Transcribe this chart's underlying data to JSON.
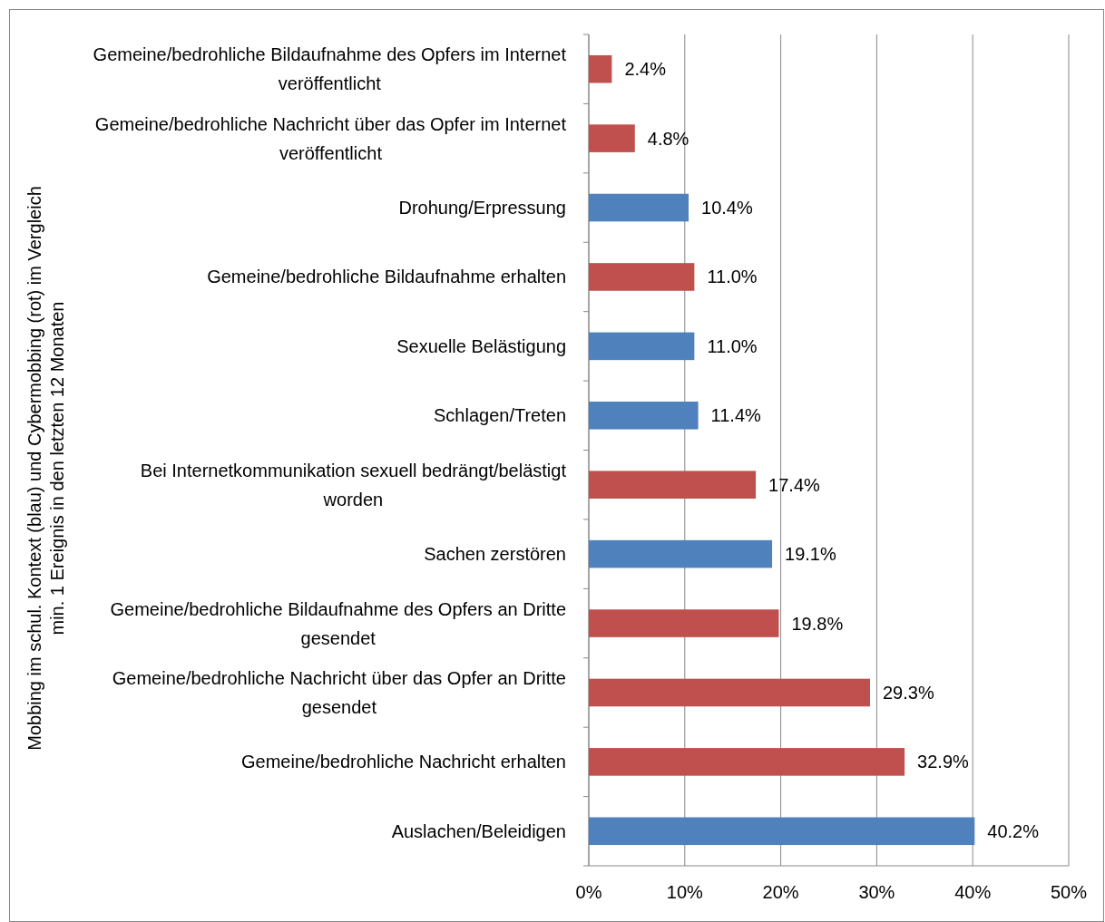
{
  "chart_data": {
    "type": "bar",
    "orientation": "horizontal",
    "ylabel": "Mobbing im schul. Kontext (blau) und Cybermobbing (rot) im Vergleich\nmin. 1 Ereignis in den letzten 12 Monaten",
    "categories": [
      "Gemeine/bedrohliche Bildaufnahme des Opfers im Internet veröffentlicht",
      "Gemeine/bedrohliche Nachricht über das Opfer im Internet veröffentlicht",
      "Drohung/Erpressung",
      "Gemeine/bedrohliche Bildaufnahme erhalten",
      "Sexuelle Belästigung",
      "Schlagen/Treten",
      "Bei Internetkommunikation sexuell bedrängt/belästigt worden",
      "Sachen zerstören",
      "Gemeine/bedrohliche Bildaufnahme des Opfers an Dritte gesendet",
      "Gemeine/bedrohliche Nachricht über das Opfer an Dritte gesendet",
      "Gemeine/bedrohliche Nachricht erhalten",
      "Auslachen/Beleidigen"
    ],
    "values": [
      2.4,
      4.8,
      10.4,
      11.0,
      11.0,
      11.4,
      17.4,
      19.1,
      19.8,
      29.3,
      32.9,
      40.2
    ],
    "value_labels": [
      "2.4%",
      "4.8%",
      "10.4%",
      "11.0%",
      "11.0%",
      "11.4%",
      "17.4%",
      "19.1%",
      "19.8%",
      "29.3%",
      "32.9%",
      "40.2%"
    ],
    "colors": [
      "#c0504d",
      "#c0504d",
      "#4f81bd",
      "#c0504d",
      "#4f81bd",
      "#4f81bd",
      "#c0504d",
      "#4f81bd",
      "#c0504d",
      "#c0504d",
      "#c0504d",
      "#4f81bd"
    ],
    "xlim": [
      0,
      50
    ],
    "xticks": [
      {
        "value": 0,
        "label": "0%"
      },
      {
        "value": 10,
        "label": "10%"
      },
      {
        "value": 20,
        "label": "20%"
      },
      {
        "value": 30,
        "label": "30%"
      },
      {
        "value": 40,
        "label": "40%"
      },
      {
        "value": 50,
        "label": "50%"
      }
    ],
    "grid": "x"
  }
}
